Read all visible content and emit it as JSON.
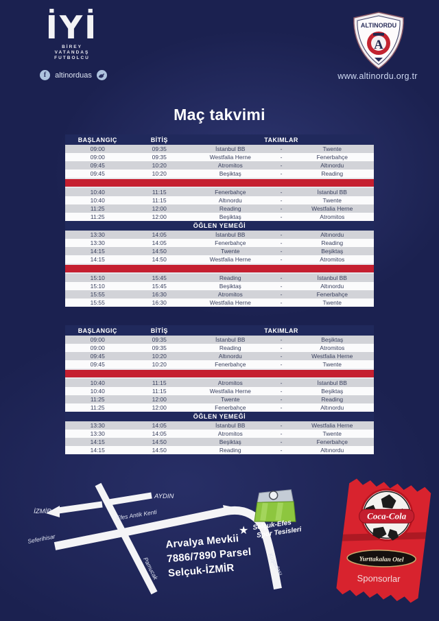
{
  "header": {
    "iyi_logo": {
      "text": "İYİ",
      "motto_lines": [
        "BİREY",
        "VATANDAŞ",
        "FUTBOLCU"
      ]
    },
    "social": {
      "handle": "altinorduas"
    },
    "crest": {
      "club": "ALTINORDU",
      "letter": "A"
    },
    "website": "www.altinordu.org.tr"
  },
  "title": "Maç takvimi",
  "table_headers": {
    "start": "BAŞLANGIÇ",
    "end": "BİTİŞ",
    "teams": "TAKIMLAR",
    "dash": "-"
  },
  "tables": [
    {
      "sections": [
        {
          "type": "rows",
          "rows": [
            [
              "09:00",
              "09:35",
              "İstanbul BB",
              "Twente"
            ],
            [
              "09:00",
              "09:35",
              "Westfalia Herne",
              "Fenerbahçe"
            ],
            [
              "09:45",
              "10:20",
              "Atromitos",
              "Altınordu"
            ],
            [
              "09:45",
              "10:20",
              "Beşiktaş",
              "Reading"
            ]
          ]
        },
        {
          "type": "divider"
        },
        {
          "type": "rows",
          "rows": [
            [
              "10:40",
              "11:15",
              "Fenerbahçe",
              "İstanbul BB"
            ],
            [
              "10:40",
              "11:15",
              "Altınordu",
              "Twente"
            ],
            [
              "11:25",
              "12:00",
              "Reading",
              "Westfalia Herne"
            ],
            [
              "11:25",
              "12:00",
              "Beşiktaş",
              "Atromitos"
            ]
          ]
        },
        {
          "type": "lunch",
          "label": "ÖĞLEN YEMEĞİ"
        },
        {
          "type": "rows",
          "rows": [
            [
              "13:30",
              "14:05",
              "İstanbul BB",
              "Altınordu"
            ],
            [
              "13:30",
              "14:05",
              "Fenerbahçe",
              "Reading"
            ],
            [
              "14:15",
              "14:50",
              "Twente",
              "Beşiktaş"
            ],
            [
              "14:15",
              "14:50",
              "Westfalia Herne",
              "Atromitos"
            ]
          ]
        },
        {
          "type": "divider"
        },
        {
          "type": "rows",
          "rows": [
            [
              "15:10",
              "15:45",
              "Reading",
              "İstanbul BB"
            ],
            [
              "15:10",
              "15:45",
              "Beşiktaş",
              "Altınordu"
            ],
            [
              "15:55",
              "16:30",
              "Atromitos",
              "Fenerbahçe"
            ],
            [
              "15:55",
              "16:30",
              "Westfalia Herne",
              "Twente"
            ]
          ]
        }
      ]
    },
    {
      "sections": [
        {
          "type": "rows",
          "rows": [
            [
              "09:00",
              "09:35",
              "İstanbul BB",
              "Beşiktaş"
            ],
            [
              "09:00",
              "09:35",
              "Reading",
              "Atromitos"
            ],
            [
              "09:45",
              "10:20",
              "Altınordu",
              "Westfalia Herne"
            ],
            [
              "09:45",
              "10:20",
              "Fenerbahçe",
              "Twente"
            ]
          ]
        },
        {
          "type": "divider"
        },
        {
          "type": "rows",
          "rows": [
            [
              "10:40",
              "11:15",
              "Atromitos",
              "İstanbul BB"
            ],
            [
              "10:40",
              "11:15",
              "Westfalia Herne",
              "Beşiktaş"
            ],
            [
              "11:25",
              "12:00",
              "Twente",
              "Reading"
            ],
            [
              "11:25",
              "12:00",
              "Fenerbahçe",
              "Altınordu"
            ]
          ]
        },
        {
          "type": "lunch",
          "label": "ÖĞLEN YEMEĞİ"
        },
        {
          "type": "rows",
          "rows": [
            [
              "13:30",
              "14:05",
              "İstanbul BB",
              "Westfalia Herne"
            ],
            [
              "13:30",
              "14:05",
              "Atromitos",
              "Twente"
            ],
            [
              "14:15",
              "14:50",
              "Beşiktaş",
              "Fenerbahçe"
            ],
            [
              "14:15",
              "14:50",
              "Reading",
              "Altınordu"
            ]
          ]
        }
      ]
    }
  ],
  "map": {
    "labels": {
      "izmir": "İZMİR",
      "aydin": "AYDIN",
      "efes": "Efes Antik Kenti",
      "seferihisar": "Seferihisar",
      "pamucak": "Pamucak",
      "kusadasi": "Kuşadası"
    },
    "venue_line1": "Selçuk-Efes",
    "venue_line2": "Spor Tesisleri",
    "address_lines": [
      "Arvalya Mevkii",
      "7886/7890 Parsel",
      "Selçuk-İZMİR"
    ]
  },
  "sponsor_badge": {
    "cola": "Coca-Cola",
    "hotel": "Yurttakalan Otel",
    "caption": "Sponsorlar"
  },
  "colors": {
    "background": "#1b2150",
    "panel_navy": "#20295c",
    "divider_red": "#c51f30",
    "row_gray": "#d2d3d8",
    "row_white": "#fbfbfc",
    "pitch_green": "#8dc63f",
    "badge_red": "#d8232e"
  }
}
